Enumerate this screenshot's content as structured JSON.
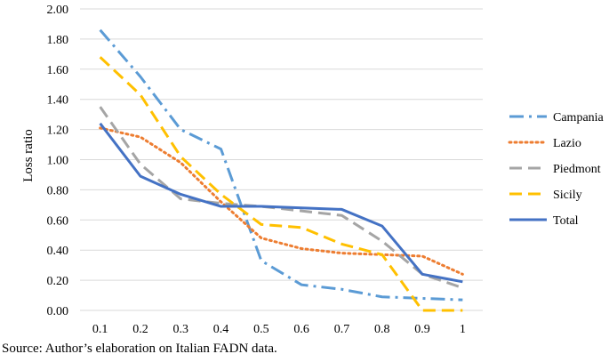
{
  "chart_data": {
    "type": "line",
    "title": "",
    "xlabel": "",
    "ylabel": "Loss ratio",
    "categories": [
      "0.1",
      "0.2",
      "0.3",
      "0.4",
      "0.5",
      "0.6",
      "0.7",
      "0.8",
      "0.9",
      "1"
    ],
    "ylim": [
      0,
      2
    ],
    "yticks": [
      "0.00",
      "0.20",
      "0.40",
      "0.60",
      "0.80",
      "1.00",
      "1.20",
      "1.40",
      "1.60",
      "1.80",
      "2.00"
    ],
    "grid": true,
    "legend_position": "right",
    "series": [
      {
        "name": "Campania",
        "color": "#5b9bd5",
        "style": "dashdot",
        "values": [
          1.86,
          1.55,
          1.2,
          1.07,
          0.33,
          0.17,
          0.14,
          0.09,
          0.08,
          0.07
        ]
      },
      {
        "name": "Lazio",
        "color": "#ed7d31",
        "style": "dotted",
        "values": [
          1.21,
          1.15,
          0.98,
          0.72,
          0.48,
          0.41,
          0.38,
          0.37,
          0.36,
          0.24
        ]
      },
      {
        "name": "Piedmont",
        "color": "#a5a5a5",
        "style": "dashed",
        "values": [
          1.35,
          0.97,
          0.74,
          0.71,
          0.69,
          0.66,
          0.63,
          0.46,
          0.24,
          0.15
        ]
      },
      {
        "name": "Sicily",
        "color": "#ffc000",
        "style": "dashed",
        "values": [
          1.68,
          1.43,
          1.02,
          0.77,
          0.57,
          0.55,
          0.44,
          0.37,
          0.0,
          0.0
        ]
      },
      {
        "name": "Total",
        "color": "#4472c4",
        "style": "solid",
        "values": [
          1.24,
          0.89,
          0.77,
          0.69,
          0.69,
          0.68,
          0.67,
          0.56,
          0.24,
          0.19
        ]
      }
    ]
  },
  "caption": "Source: Author’s elaboration on Italian FADN data."
}
